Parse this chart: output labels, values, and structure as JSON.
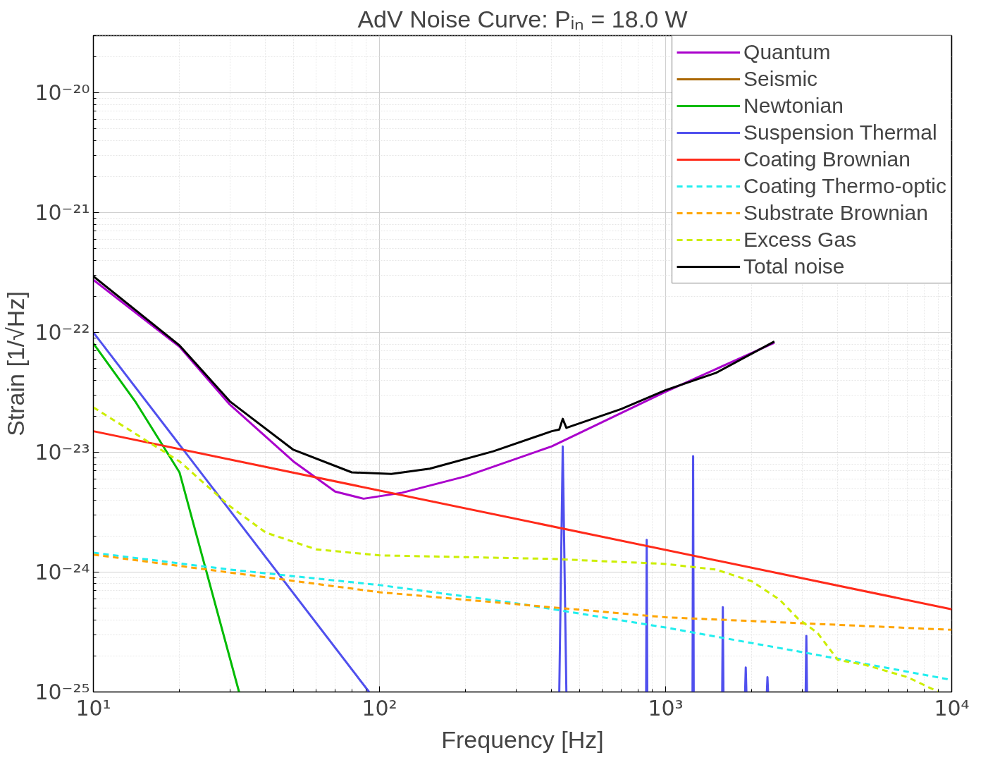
{
  "chart_data": {
    "type": "line",
    "title": "AdV Noise Curve: Pᵢₙ = 18.0 W",
    "xlabel": "Frequency [Hz]",
    "ylabel": "Strain [1/√Hz]",
    "log": "xy",
    "grid": true,
    "legend": "top right",
    "xlim": [
      10,
      10000
    ],
    "ylim": [
      1e-25,
      3e-20
    ],
    "xticks": [
      {
        "value": 10,
        "label": "10¹"
      },
      {
        "value": 100,
        "label": "10²"
      },
      {
        "value": 1000,
        "label": "10³"
      },
      {
        "value": 10000,
        "label": "10⁴"
      }
    ],
    "yticks": [
      {
        "value": 1e-25,
        "label": "10⁻²⁵"
      },
      {
        "value": 1e-24,
        "label": "10⁻²⁴"
      },
      {
        "value": 1e-23,
        "label": "10⁻²³"
      },
      {
        "value": 1e-22,
        "label": "10⁻²²"
      },
      {
        "value": 1e-21,
        "label": "10⁻²¹"
      },
      {
        "value": 1e-20,
        "label": "10⁻²⁰"
      }
    ],
    "series": [
      {
        "name": "Quantum",
        "color": "#aa00cc",
        "line_style": "solid",
        "x": [
          10,
          20,
          30,
          50,
          70,
          88,
          120,
          200,
          400,
          1000,
          2400
        ],
        "values": [
          2.75e-22,
          7.6e-23,
          2.5e-23,
          8.4e-24,
          4.7e-24,
          4.1e-24,
          4.6e-24,
          6.3e-24,
          1.12e-23,
          3.2e-23,
          8.2e-23
        ]
      },
      {
        "name": "Seismic",
        "color": "#aa6600",
        "line_style": "solid"
      },
      {
        "name": "Newtonian",
        "color": "#00bb00",
        "line_style": "solid",
        "x": [
          10,
          14,
          20,
          32.3
        ],
        "values": [
          8.1e-23,
          2.66e-23,
          6.8e-24,
          1e-25
        ]
      },
      {
        "name": "Suspension Thermal",
        "color": "#5050ee",
        "line_style": "solid",
        "x": [
          10,
          92,
          93,
          425,
          437,
          450,
          451,
          855,
          859,
          863,
          864,
          1242,
          1248,
          1254,
          1255,
          1577,
          1585,
          1593,
          1594,
          1896,
          1906,
          1916,
          1917,
          2259,
          2270,
          2281,
          2282,
          3088,
          3104,
          3120
        ],
        "values": [
          1e-22,
          1e-25,
          null,
          1e-25,
          1.12e-23,
          1e-25,
          null,
          1e-25,
          1.86e-24,
          1e-25,
          null,
          1e-25,
          9.3e-24,
          1e-25,
          null,
          1e-25,
          5.1e-25,
          1e-25,
          null,
          1e-25,
          1.6e-25,
          1e-25,
          null,
          1e-25,
          1.33e-25,
          1e-25,
          null,
          1e-25,
          2.94e-25,
          1e-25
        ]
      },
      {
        "name": "Coating Brownian",
        "color": "#ff2a1a",
        "line_style": "solid",
        "x": [
          10,
          10000
        ],
        "values": [
          1.5e-23,
          4.9e-25
        ]
      },
      {
        "name": "Coating Thermo-optic",
        "color": "#22eeee",
        "line_style": "dashed",
        "x": [
          10,
          30,
          100,
          300,
          1000,
          3000,
          10000
        ],
        "values": [
          1.45e-24,
          1.05e-24,
          7.8e-25,
          5.5e-25,
          3.45e-25,
          2.15e-25,
          1.26e-25
        ]
      },
      {
        "name": "Substrate Brownian",
        "color": "#ffa500",
        "line_style": "dashed",
        "x": [
          10,
          100,
          1000,
          10000
        ],
        "values": [
          1.4e-24,
          6.8e-25,
          4.2e-25,
          3.3e-25
        ]
      },
      {
        "name": "Excess Gas",
        "color": "#ccee00",
        "line_style": "dashed",
        "x": [
          10,
          20,
          30,
          40,
          60,
          100,
          400,
          1000,
          1500,
          2000,
          2500,
          2900,
          3400,
          4000,
          5000,
          7000,
          9000
        ],
        "values": [
          2.37e-23,
          8.4e-24,
          3.55e-24,
          2.14e-24,
          1.55e-24,
          1.38e-24,
          1.29e-24,
          1.17e-24,
          1.05e-24,
          8.4e-25,
          5.9e-25,
          4.1e-25,
          3.1e-25,
          1.85e-25,
          1.68e-25,
          1.33e-25,
          1e-25
        ]
      },
      {
        "name": "Total noise",
        "color": "#000000",
        "line_style": "solid",
        "x": [
          10,
          20,
          30,
          50,
          80,
          110,
          150,
          250,
          400,
          425,
          437,
          450,
          700,
          1000,
          1500,
          2400
        ],
        "values": [
          2.94e-22,
          7.8e-23,
          2.66e-23,
          1.05e-23,
          6.8e-24,
          6.6e-24,
          7.3e-24,
          1.02e-23,
          1.5e-23,
          1.55e-23,
          1.9e-23,
          1.6e-23,
          2.3e-23,
          3.3e-23,
          4.6e-23,
          8.4e-23
        ]
      }
    ]
  }
}
